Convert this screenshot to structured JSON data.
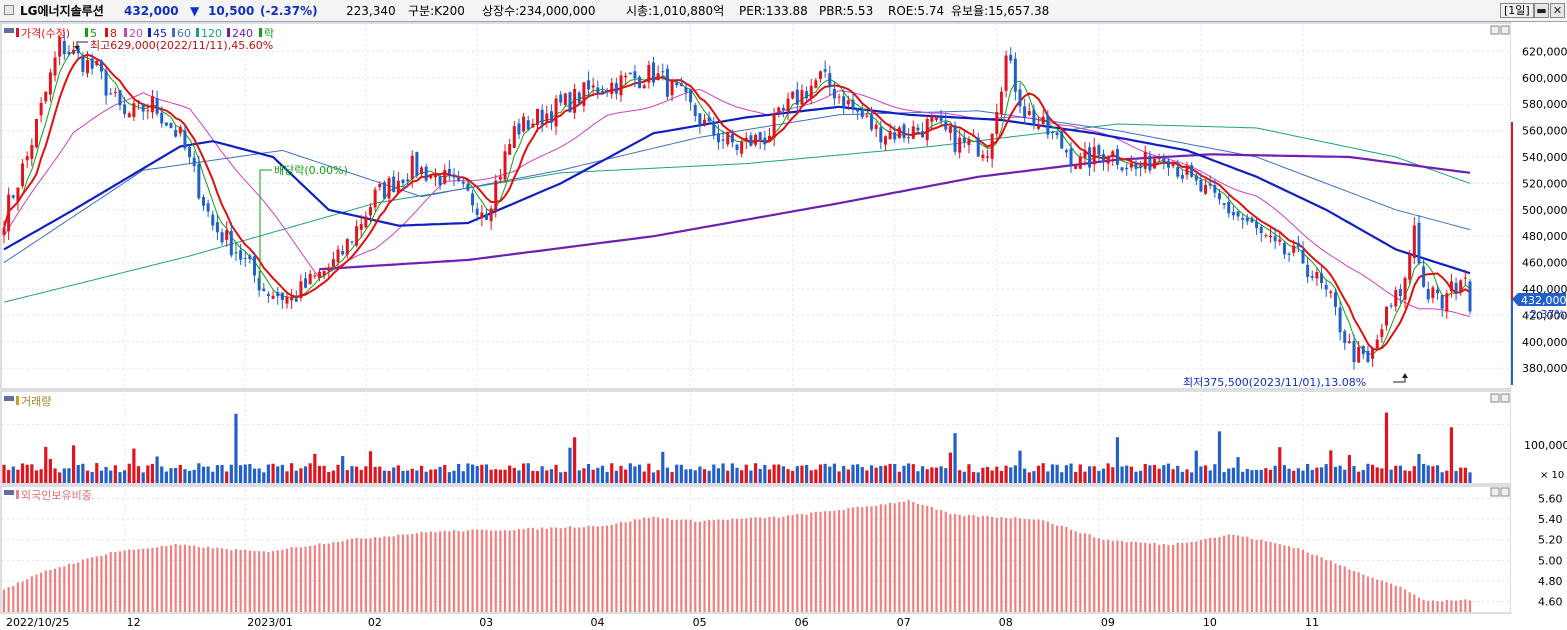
{
  "header": {
    "stock_name": "LG에너지솔루션",
    "price": "432,000",
    "change_arrow": "▼",
    "change": "10,500",
    "change_pct": "(-2.37%)",
    "volume": "223,340",
    "market": "구분:K200",
    "shares": "상장수:234,000,000",
    "market_cap": "시총:1,010,880억",
    "per": "PER:133.88",
    "pbr": "PBR:5.53",
    "roe": "ROE:5.74",
    "float": "유보율:15,657.38",
    "period": "[1일]",
    "min_label": "▬",
    "close_label": "✕"
  },
  "colors": {
    "up": "#e0141e",
    "down": "#2060c8",
    "ma5": "#10a010",
    "ma8": "#e01010",
    "ma20": "#d040c0",
    "ma45": "#1020c0",
    "ma60": "#4070c0",
    "ma120": "#20a080",
    "ma240": "#7020b0",
    "foreign_bar": "#f08080",
    "price_tag": "#2060c8"
  },
  "price_panel": {
    "legend": {
      "price": "가격(수정)",
      "ma5": "5",
      "ma8": "8",
      "ma20": "20",
      "ma45": "45",
      "ma60": "60",
      "ma120": "120",
      "ma240": "240",
      "suffix": "락"
    },
    "high_annotation": "최고629,000(2022/11/11),45.60%",
    "low_annotation": "최저375,500(2023/11/01),13.08%",
    "dividend_annotation": "배당락(0.00%)",
    "current_price_tag": "432,000",
    "current_pct": "-2.37%"
  },
  "volume_panel": {
    "title": "거래량",
    "unit_label": "× 10",
    "axis_label": "100,000"
  },
  "foreign_panel": {
    "title": "외국인보유비중"
  },
  "x_axis": {
    "labels": [
      "2022/10/25",
      "12",
      "2023/01",
      "02",
      "03",
      "04",
      "05",
      "06",
      "07",
      "08",
      "09",
      "10",
      "11"
    ]
  },
  "chart_data": {
    "type": "candlestick",
    "period": "daily",
    "x_range": [
      "2022/10/25",
      "2023/11/21"
    ],
    "y_price_range": [
      365000,
      640000
    ],
    "y_price_ticks": [
      "620,000",
      "600,000",
      "580,000",
      "560,000",
      "540,000",
      "520,000",
      "500,000",
      "480,000",
      "460,000",
      "440,000",
      "420,000",
      "400,000",
      "380,000"
    ],
    "price_keypoints": [
      [
        0,
        495000
      ],
      [
        5,
        540000
      ],
      [
        12,
        625000
      ],
      [
        20,
        605000
      ],
      [
        26,
        570000
      ],
      [
        32,
        580000
      ],
      [
        38,
        555000
      ],
      [
        45,
        488000
      ],
      [
        50,
        470000
      ],
      [
        56,
        440000
      ],
      [
        62,
        432000
      ],
      [
        66,
        445000
      ],
      [
        72,
        462000
      ],
      [
        80,
        510000
      ],
      [
        88,
        532000
      ],
      [
        94,
        525000
      ],
      [
        100,
        510000
      ],
      [
        104,
        500000
      ],
      [
        110,
        560000
      ],
      [
        118,
        575000
      ],
      [
        126,
        590000
      ],
      [
        134,
        598000
      ],
      [
        140,
        603000
      ],
      [
        146,
        585000
      ],
      [
        152,
        560000
      ],
      [
        158,
        548000
      ],
      [
        164,
        555000
      ],
      [
        170,
        582000
      ],
      [
        176,
        600000
      ],
      [
        182,
        580000
      ],
      [
        188,
        560000
      ],
      [
        194,
        558000
      ],
      [
        200,
        565000
      ],
      [
        206,
        550000
      ],
      [
        212,
        548000
      ],
      [
        216,
        615000
      ],
      [
        220,
        575000
      ],
      [
        226,
        555000
      ],
      [
        232,
        535000
      ],
      [
        238,
        545000
      ],
      [
        244,
        530000
      ],
      [
        250,
        545000
      ],
      [
        256,
        520000
      ],
      [
        262,
        505000
      ],
      [
        268,
        490000
      ],
      [
        274,
        470000
      ],
      [
        280,
        462000
      ],
      [
        286,
        430000
      ],
      [
        290,
        395000
      ],
      [
        294,
        382000
      ],
      [
        298,
        420000
      ],
      [
        302,
        445000
      ],
      [
        304,
        490000
      ],
      [
        306,
        440000
      ],
      [
        310,
        428000
      ],
      [
        314,
        450000
      ],
      [
        316,
        432000
      ]
    ],
    "ma_keypoints": {
      "ma45": [
        [
          0,
          470000
        ],
        [
          15,
          500000
        ],
        [
          38,
          548000
        ],
        [
          45,
          552000
        ],
        [
          58,
          540000
        ],
        [
          70,
          500000
        ],
        [
          85,
          488000
        ],
        [
          100,
          490000
        ],
        [
          120,
          520000
        ],
        [
          140,
          558000
        ],
        [
          160,
          570000
        ],
        [
          180,
          578000
        ],
        [
          195,
          572000
        ],
        [
          215,
          568000
        ],
        [
          235,
          558000
        ],
        [
          255,
          545000
        ],
        [
          270,
          525000
        ],
        [
          285,
          500000
        ],
        [
          300,
          470000
        ],
        [
          316,
          452000
        ]
      ],
      "ma60": [
        [
          0,
          460000
        ],
        [
          30,
          530000
        ],
        [
          60,
          545000
        ],
        [
          90,
          510000
        ],
        [
          120,
          530000
        ],
        [
          150,
          555000
        ],
        [
          180,
          572000
        ],
        [
          210,
          575000
        ],
        [
          240,
          560000
        ],
        [
          270,
          540000
        ],
        [
          300,
          500000
        ],
        [
          316,
          485000
        ]
      ],
      "ma120": [
        [
          0,
          430000
        ],
        [
          40,
          465000
        ],
        [
          80,
          505000
        ],
        [
          120,
          528000
        ],
        [
          160,
          535000
        ],
        [
          200,
          548000
        ],
        [
          240,
          565000
        ],
        [
          270,
          562000
        ],
        [
          300,
          540000
        ],
        [
          316,
          520000
        ]
      ],
      "ma240": [
        [
          68,
          455000
        ],
        [
          100,
          462000
        ],
        [
          140,
          480000
        ],
        [
          180,
          505000
        ],
        [
          210,
          525000
        ],
        [
          240,
          538000
        ],
        [
          260,
          542000
        ],
        [
          290,
          540000
        ],
        [
          316,
          528000
        ]
      ],
      "ma20": [
        [
          0,
          480000
        ],
        [
          15,
          560000
        ],
        [
          30,
          590000
        ],
        [
          40,
          575000
        ],
        [
          55,
          510000
        ],
        [
          68,
          450000
        ],
        [
          80,
          470000
        ],
        [
          95,
          520000
        ],
        [
          110,
          528000
        ],
        [
          130,
          570000
        ],
        [
          150,
          590000
        ],
        [
          165,
          570000
        ],
        [
          180,
          590000
        ],
        [
          200,
          572000
        ],
        [
          215,
          570000
        ],
        [
          230,
          565000
        ],
        [
          250,
          540000
        ],
        [
          270,
          510000
        ],
        [
          290,
          455000
        ],
        [
          305,
          425000
        ],
        [
          316,
          420000
        ]
      ]
    },
    "y_volume_range": [
      0,
      150000
    ],
    "y_foreign_range": [
      4.5,
      5.7
    ],
    "y_foreign_ticks": [
      "5.60",
      "5.40",
      "5.20",
      "5.00",
      "4.80",
      "4.60"
    ],
    "foreign_keypoints": [
      [
        0,
        4.72
      ],
      [
        10,
        4.9
      ],
      [
        25,
        5.08
      ],
      [
        40,
        5.15
      ],
      [
        60,
        5.08
      ],
      [
        80,
        5.2
      ],
      [
        100,
        5.28
      ],
      [
        120,
        5.3
      ],
      [
        140,
        5.34
      ],
      [
        150,
        5.42
      ],
      [
        160,
        5.38
      ],
      [
        180,
        5.42
      ],
      [
        200,
        5.52
      ],
      [
        210,
        5.58
      ],
      [
        220,
        5.44
      ],
      [
        240,
        5.4
      ],
      [
        255,
        5.2
      ],
      [
        270,
        5.15
      ],
      [
        285,
        5.25
      ],
      [
        300,
        5.12
      ],
      [
        310,
        4.95
      ],
      [
        325,
        4.72
      ],
      [
        330,
        4.6
      ],
      [
        340,
        4.62
      ]
    ]
  }
}
